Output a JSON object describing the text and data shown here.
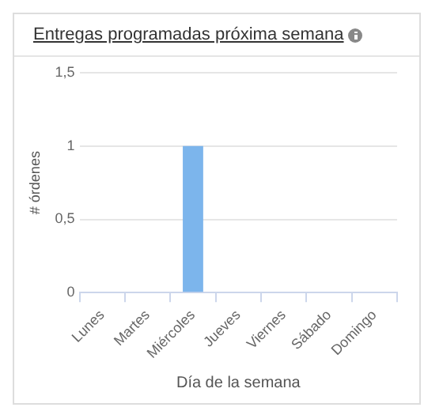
{
  "chart_data": {
    "type": "bar",
    "title": "Entregas programadas próxima semana",
    "xlabel": "Día de la semana",
    "ylabel": "# órdenes",
    "categories": [
      "Lunes",
      "Martes",
      "Miércoles",
      "Jueves",
      "Viernes",
      "Sábado",
      "Domingo"
    ],
    "values": [
      0,
      0,
      1,
      0,
      0,
      0,
      0
    ],
    "color": "#7cb5ec",
    "ylim": [
      0,
      1.5
    ],
    "yticks": [
      0,
      {
        "value": 0.5,
        "label": "0,5"
      },
      1,
      {
        "value": 1.5,
        "label": "1,5"
      }
    ],
    "grid": "y",
    "legend": false
  }
}
